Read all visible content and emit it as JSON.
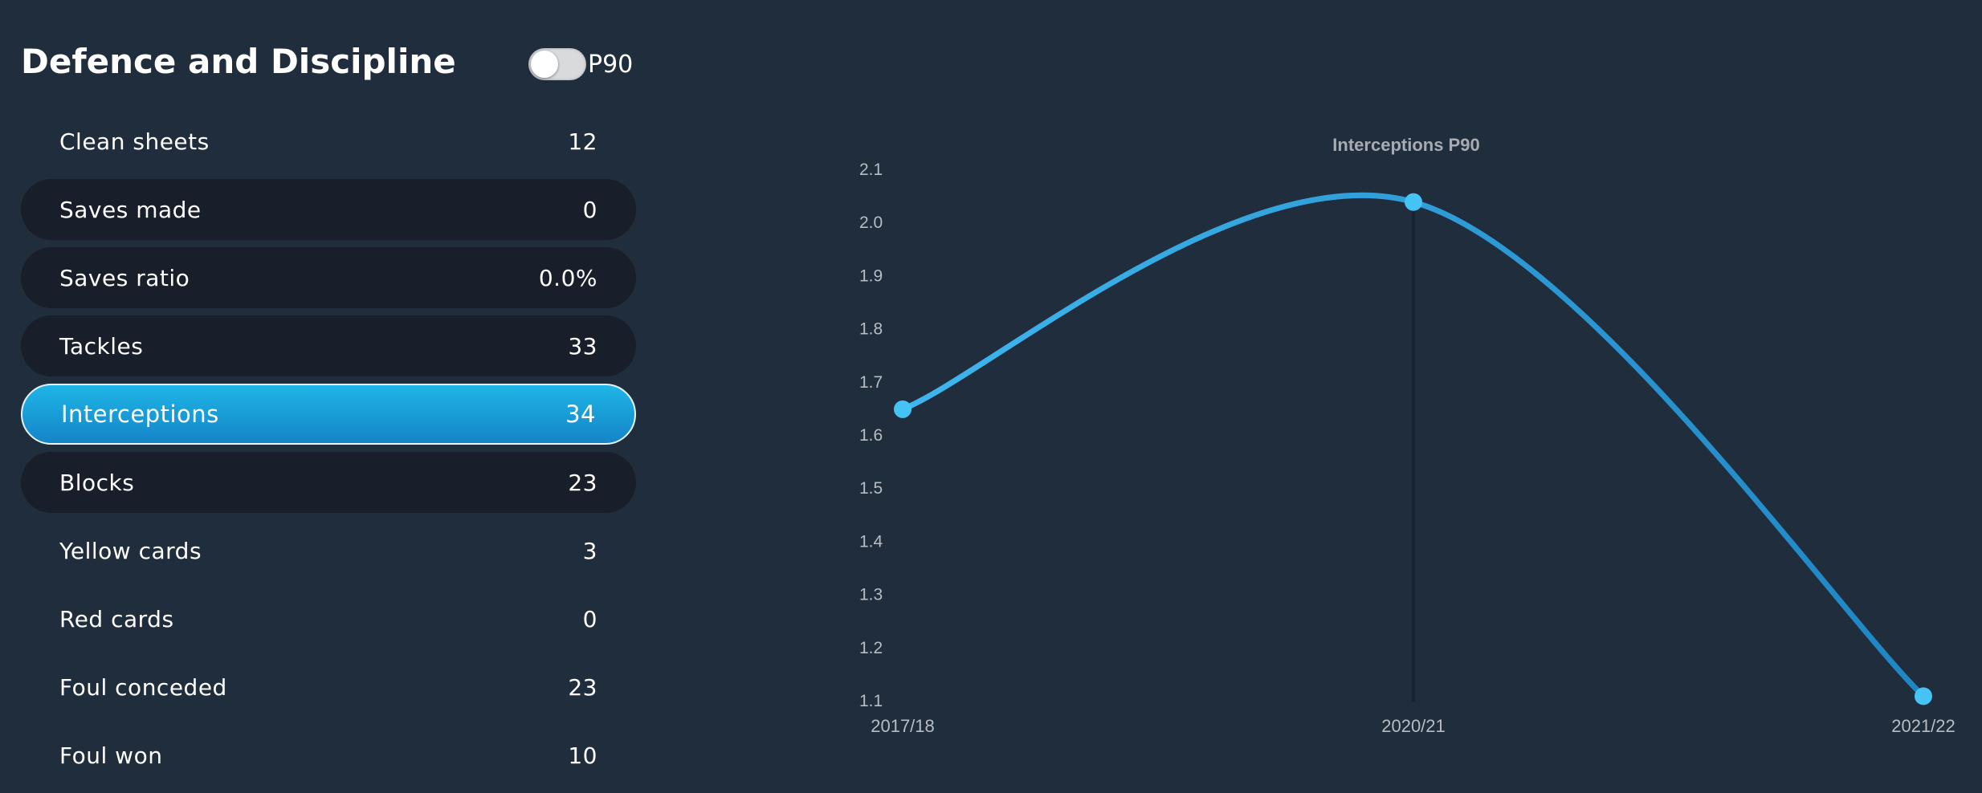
{
  "section": {
    "title": "Defence and Discipline",
    "toggle_label": "P90",
    "toggle_on": false
  },
  "stats": [
    {
      "label": "Clean sheets",
      "value": "12",
      "style": "plain"
    },
    {
      "label": "Saves made",
      "value": "0",
      "style": "pill"
    },
    {
      "label": "Saves ratio",
      "value": "0.0%",
      "style": "pill"
    },
    {
      "label": "Tackles",
      "value": "33",
      "style": "pill"
    },
    {
      "label": "Interceptions",
      "value": "34",
      "style": "active"
    },
    {
      "label": "Blocks",
      "value": "23",
      "style": "pill"
    },
    {
      "label": "Yellow cards",
      "value": "3",
      "style": "plain"
    },
    {
      "label": "Red cards",
      "value": "0",
      "style": "plain"
    },
    {
      "label": "Foul conceded",
      "value": "23",
      "style": "plain"
    },
    {
      "label": "Foul won",
      "value": "10",
      "style": "plain"
    }
  ],
  "chart_data": {
    "type": "line",
    "title": "Interceptions P90",
    "categories": [
      "2017/18",
      "2020/21",
      "2021/22"
    ],
    "values": [
      1.65,
      2.04,
      1.11
    ],
    "ylim": [
      1.1,
      2.1
    ],
    "yticks": [
      "1.1",
      "1.2",
      "1.3",
      "1.4",
      "1.5",
      "1.6",
      "1.7",
      "1.8",
      "1.9",
      "2.0",
      "2.1"
    ],
    "xlabel": "",
    "ylabel": "",
    "grid": false,
    "line_color": "#3fb6ee",
    "marker_color": "#45c3f5"
  }
}
